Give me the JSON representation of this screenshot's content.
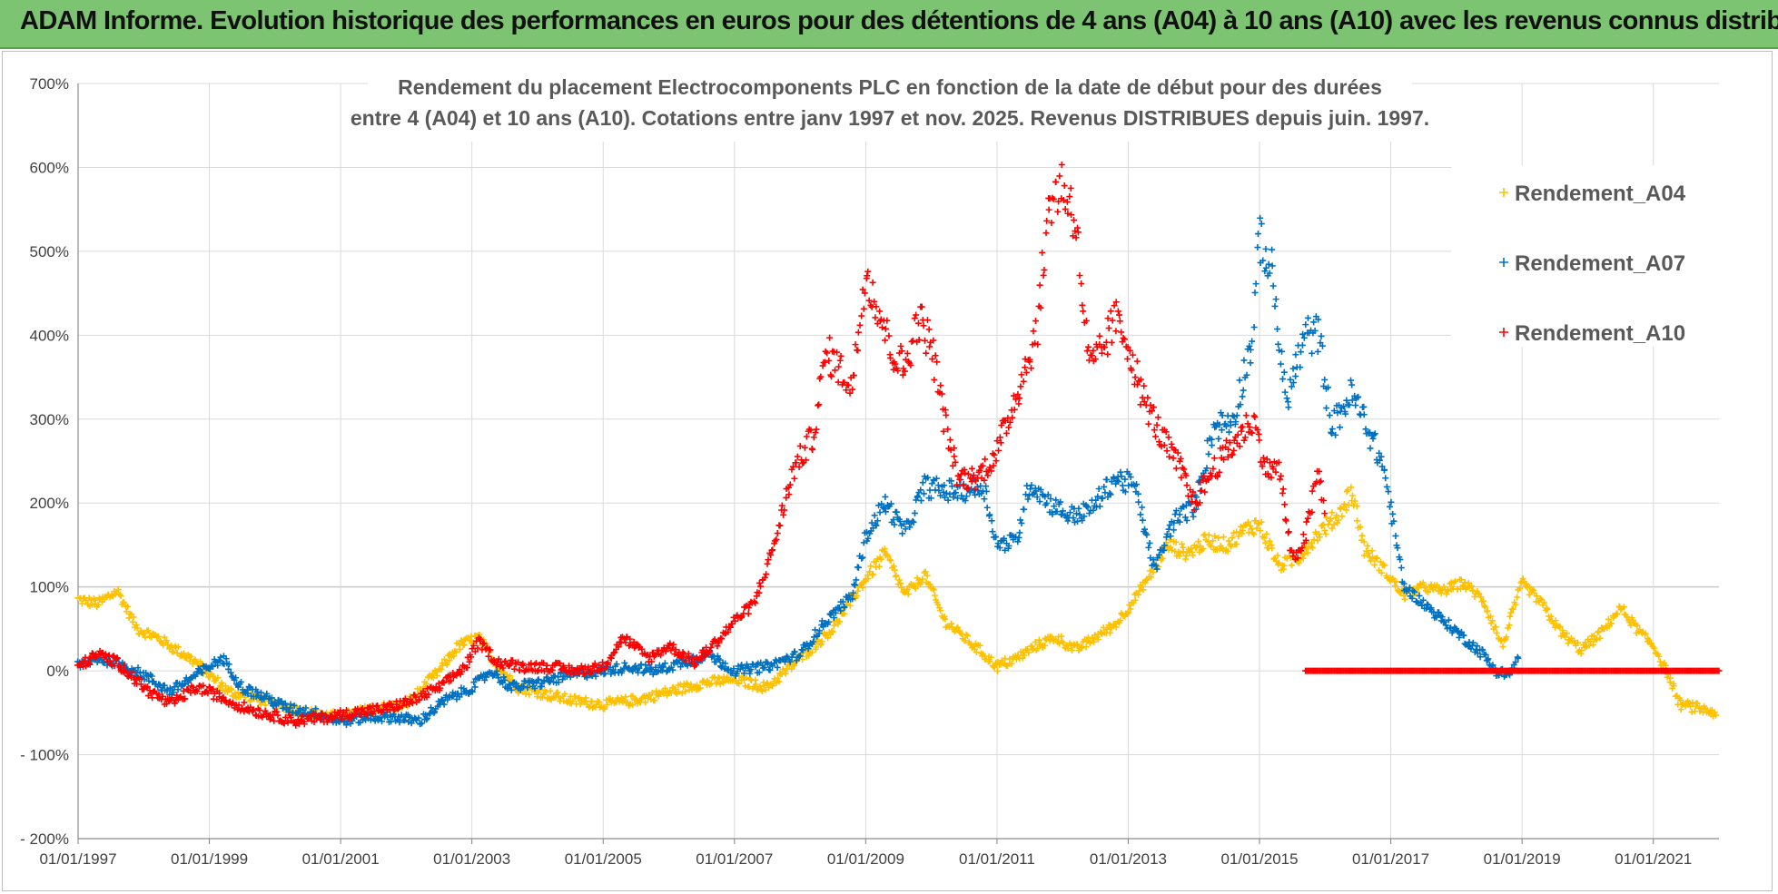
{
  "banner": {
    "title": "ADAM Informe. Evolution historique des performances en euros pour des détentions de 4 ans (A04) à 10 ans (A10) avec les revenus connus distribués"
  },
  "colors": {
    "banner_bg": "#7dc472",
    "A04": "#ffc000",
    "A07": "#0070c0",
    "A10": "#ff0000",
    "grid": "#d9d9d9",
    "axis": "#bfbfbf"
  },
  "chart_data": {
    "type": "scatter",
    "marker": "+",
    "title_lines": [
      "Rendement du placement Electrocomponents PLC en fonction de la date de début pour des durées",
      "entre 4 (A04) et 10 ans (A10). Cotations entre janv 1997 et nov. 2025. Revenus DISTRIBUES depuis juin. 1997."
    ],
    "xlabel": "",
    "ylabel": "",
    "x_range": [
      1997.0,
      2022.0
    ],
    "ylim": [
      -200,
      700
    ],
    "y_ticks": [
      -200,
      -100,
      0,
      100,
      200,
      300,
      400,
      500,
      600,
      700
    ],
    "y_tick_labels": [
      "- 200%",
      "- 100%",
      "0%",
      "100%",
      "200%",
      "300%",
      "400%",
      "500%",
      "600%",
      "700%"
    ],
    "x_ticks": [
      1997,
      1999,
      2001,
      2003,
      2005,
      2007,
      2009,
      2011,
      2013,
      2015,
      2017,
      2019,
      2021
    ],
    "x_tick_labels": [
      "01/01/1997",
      "01/01/1999",
      "01/01/2001",
      "01/01/2003",
      "01/01/2005",
      "01/01/2007",
      "01/01/2009",
      "01/01/2011",
      "01/01/2013",
      "01/01/2015",
      "01/01/2017",
      "01/01/2019",
      "01/01/2021"
    ],
    "grid": true,
    "legend_position": "top-right",
    "series": [
      {
        "name": "Rendement_A04",
        "color": "#ffc000",
        "points": [
          [
            1997.0,
            85
          ],
          [
            1997.3,
            80
          ],
          [
            1997.6,
            95
          ],
          [
            1997.9,
            50
          ],
          [
            1998.2,
            40
          ],
          [
            1998.5,
            25
          ],
          [
            1998.8,
            10
          ],
          [
            1999.0,
            -5
          ],
          [
            1999.3,
            -25
          ],
          [
            1999.6,
            -30
          ],
          [
            2000.0,
            -40
          ],
          [
            2000.5,
            -50
          ],
          [
            2001.0,
            -55
          ],
          [
            2001.5,
            -45
          ],
          [
            2002.0,
            -40
          ],
          [
            2002.5,
            0
          ],
          [
            2002.8,
            30
          ],
          [
            2003.1,
            40
          ],
          [
            2003.4,
            5
          ],
          [
            2003.7,
            -20
          ],
          [
            2004.0,
            -25
          ],
          [
            2004.5,
            -35
          ],
          [
            2005.0,
            -40
          ],
          [
            2005.5,
            -35
          ],
          [
            2006.0,
            -25
          ],
          [
            2006.5,
            -15
          ],
          [
            2007.0,
            -10
          ],
          [
            2007.5,
            -20
          ],
          [
            2008.0,
            15
          ],
          [
            2008.5,
            50
          ],
          [
            2009.0,
            110
          ],
          [
            2009.3,
            140
          ],
          [
            2009.6,
            90
          ],
          [
            2009.9,
            115
          ],
          [
            2010.2,
            60
          ],
          [
            2010.5,
            40
          ],
          [
            2010.8,
            20
          ],
          [
            2011.0,
            5
          ],
          [
            2011.3,
            15
          ],
          [
            2011.6,
            30
          ],
          [
            2011.9,
            40
          ],
          [
            2012.2,
            25
          ],
          [
            2012.5,
            40
          ],
          [
            2012.8,
            55
          ],
          [
            2013.0,
            75
          ],
          [
            2013.3,
            110
          ],
          [
            2013.6,
            150
          ],
          [
            2013.9,
            140
          ],
          [
            2014.2,
            155
          ],
          [
            2014.5,
            150
          ],
          [
            2014.8,
            170
          ],
          [
            2015.0,
            175
          ],
          [
            2015.3,
            125
          ],
          [
            2015.6,
            135
          ],
          [
            2015.9,
            165
          ],
          [
            2016.2,
            185
          ],
          [
            2016.4,
            215
          ],
          [
            2016.6,
            145
          ],
          [
            2016.9,
            120
          ],
          [
            2017.2,
            90
          ],
          [
            2017.5,
            100
          ],
          [
            2017.8,
            95
          ],
          [
            2018.1,
            105
          ],
          [
            2018.4,
            85
          ],
          [
            2018.7,
            30
          ],
          [
            2019.0,
            105
          ],
          [
            2019.3,
            80
          ],
          [
            2019.6,
            45
          ],
          [
            2019.9,
            25
          ],
          [
            2020.2,
            45
          ],
          [
            2020.5,
            75
          ],
          [
            2020.8,
            45
          ],
          [
            2021.0,
            30
          ],
          [
            2021.2,
            0
          ],
          [
            2021.4,
            -40
          ],
          [
            2021.7,
            -45
          ],
          [
            2021.95,
            -50
          ]
        ]
      },
      {
        "name": "Rendement_A07",
        "color": "#0070c0",
        "points": [
          [
            1997.0,
            5
          ],
          [
            1997.3,
            15
          ],
          [
            1997.6,
            10
          ],
          [
            1998.0,
            -5
          ],
          [
            1998.4,
            -25
          ],
          [
            1998.8,
            -5
          ],
          [
            1999.0,
            5
          ],
          [
            1999.2,
            15
          ],
          [
            1999.5,
            -20
          ],
          [
            1999.8,
            -30
          ],
          [
            2000.2,
            -45
          ],
          [
            2000.6,
            -50
          ],
          [
            2001.0,
            -60
          ],
          [
            2001.4,
            -55
          ],
          [
            2001.8,
            -55
          ],
          [
            2002.2,
            -60
          ],
          [
            2002.6,
            -35
          ],
          [
            2003.0,
            -20
          ],
          [
            2003.3,
            0
          ],
          [
            2003.6,
            -20
          ],
          [
            2004.0,
            -15
          ],
          [
            2004.5,
            -5
          ],
          [
            2005.0,
            0
          ],
          [
            2005.4,
            5
          ],
          [
            2005.8,
            0
          ],
          [
            2006.2,
            10
          ],
          [
            2006.6,
            20
          ],
          [
            2007.0,
            0
          ],
          [
            2007.5,
            5
          ],
          [
            2008.0,
            20
          ],
          [
            2008.4,
            60
          ],
          [
            2008.8,
            90
          ],
          [
            2009.0,
            160
          ],
          [
            2009.3,
            200
          ],
          [
            2009.6,
            165
          ],
          [
            2009.9,
            220
          ],
          [
            2010.2,
            215
          ],
          [
            2010.5,
            215
          ],
          [
            2010.8,
            220
          ],
          [
            2011.0,
            150
          ],
          [
            2011.3,
            155
          ],
          [
            2011.5,
            225
          ],
          [
            2011.8,
            200
          ],
          [
            2012.1,
            185
          ],
          [
            2012.4,
            190
          ],
          [
            2012.8,
            230
          ],
          [
            2013.1,
            220
          ],
          [
            2013.4,
            120
          ],
          [
            2013.7,
            180
          ],
          [
            2014.0,
            195
          ],
          [
            2014.3,
            290
          ],
          [
            2014.6,
            300
          ],
          [
            2014.9,
            400
          ],
          [
            2015.0,
            520
          ],
          [
            2015.2,
            470
          ],
          [
            2015.4,
            320
          ],
          [
            2015.7,
            400
          ],
          [
            2015.9,
            400
          ],
          [
            2016.1,
            290
          ],
          [
            2016.4,
            330
          ],
          [
            2016.6,
            300
          ],
          [
            2016.9,
            240
          ],
          [
            2017.2,
            100
          ],
          [
            2017.5,
            80
          ],
          [
            2017.8,
            60
          ],
          [
            2018.1,
            40
          ],
          [
            2018.4,
            20
          ],
          [
            2018.6,
            0
          ],
          [
            2018.8,
            -5
          ],
          [
            2018.95,
            15
          ]
        ]
      },
      {
        "name": "Rendement_A10",
        "color": "#ff0000",
        "points": [
          [
            1997.0,
            5
          ],
          [
            1997.3,
            20
          ],
          [
            1997.6,
            10
          ],
          [
            1998.0,
            -20
          ],
          [
            1998.4,
            -40
          ],
          [
            1998.8,
            -20
          ],
          [
            1999.0,
            -25
          ],
          [
            1999.4,
            -40
          ],
          [
            1999.8,
            -50
          ],
          [
            2000.3,
            -60
          ],
          [
            2000.8,
            -55
          ],
          [
            2001.2,
            -50
          ],
          [
            2001.7,
            -45
          ],
          [
            2002.1,
            -35
          ],
          [
            2002.5,
            -20
          ],
          [
            2002.9,
            5
          ],
          [
            2003.1,
            35
          ],
          [
            2003.4,
            10
          ],
          [
            2003.8,
            5
          ],
          [
            2004.2,
            5
          ],
          [
            2004.6,
            0
          ],
          [
            2005.0,
            5
          ],
          [
            2005.3,
            40
          ],
          [
            2005.7,
            15
          ],
          [
            2006.0,
            30
          ],
          [
            2006.4,
            10
          ],
          [
            2006.8,
            40
          ],
          [
            2007.0,
            60
          ],
          [
            2007.3,
            80
          ],
          [
            2007.6,
            150
          ],
          [
            2007.9,
            240
          ],
          [
            2008.2,
            280
          ],
          [
            2008.4,
            380
          ],
          [
            2008.6,
            360
          ],
          [
            2008.8,
            340
          ],
          [
            2009.0,
            480
          ],
          [
            2009.2,
            430
          ],
          [
            2009.4,
            380
          ],
          [
            2009.6,
            360
          ],
          [
            2009.8,
            420
          ],
          [
            2010.0,
            390
          ],
          [
            2010.2,
            300
          ],
          [
            2010.4,
            230
          ],
          [
            2010.7,
            230
          ],
          [
            2011.0,
            260
          ],
          [
            2011.3,
            330
          ],
          [
            2011.6,
            400
          ],
          [
            2011.8,
            560
          ],
          [
            2012.0,
            580
          ],
          [
            2012.2,
            540
          ],
          [
            2012.4,
            360
          ],
          [
            2012.6,
            380
          ],
          [
            2012.8,
            420
          ],
          [
            2013.0,
            390
          ],
          [
            2013.2,
            330
          ],
          [
            2013.5,
            280
          ],
          [
            2013.8,
            240
          ],
          [
            2014.0,
            200
          ],
          [
            2014.3,
            240
          ],
          [
            2014.6,
            270
          ],
          [
            2014.9,
            300
          ],
          [
            2015.1,
            240
          ],
          [
            2015.3,
            240
          ],
          [
            2015.5,
            130
          ],
          [
            2015.7,
            160
          ],
          [
            2015.9,
            240
          ],
          [
            2016.0,
            180
          ]
        ],
        "flat_segment": {
          "x_start": 2015.7,
          "x_end": 2022.0,
          "y": 0
        }
      }
    ]
  }
}
